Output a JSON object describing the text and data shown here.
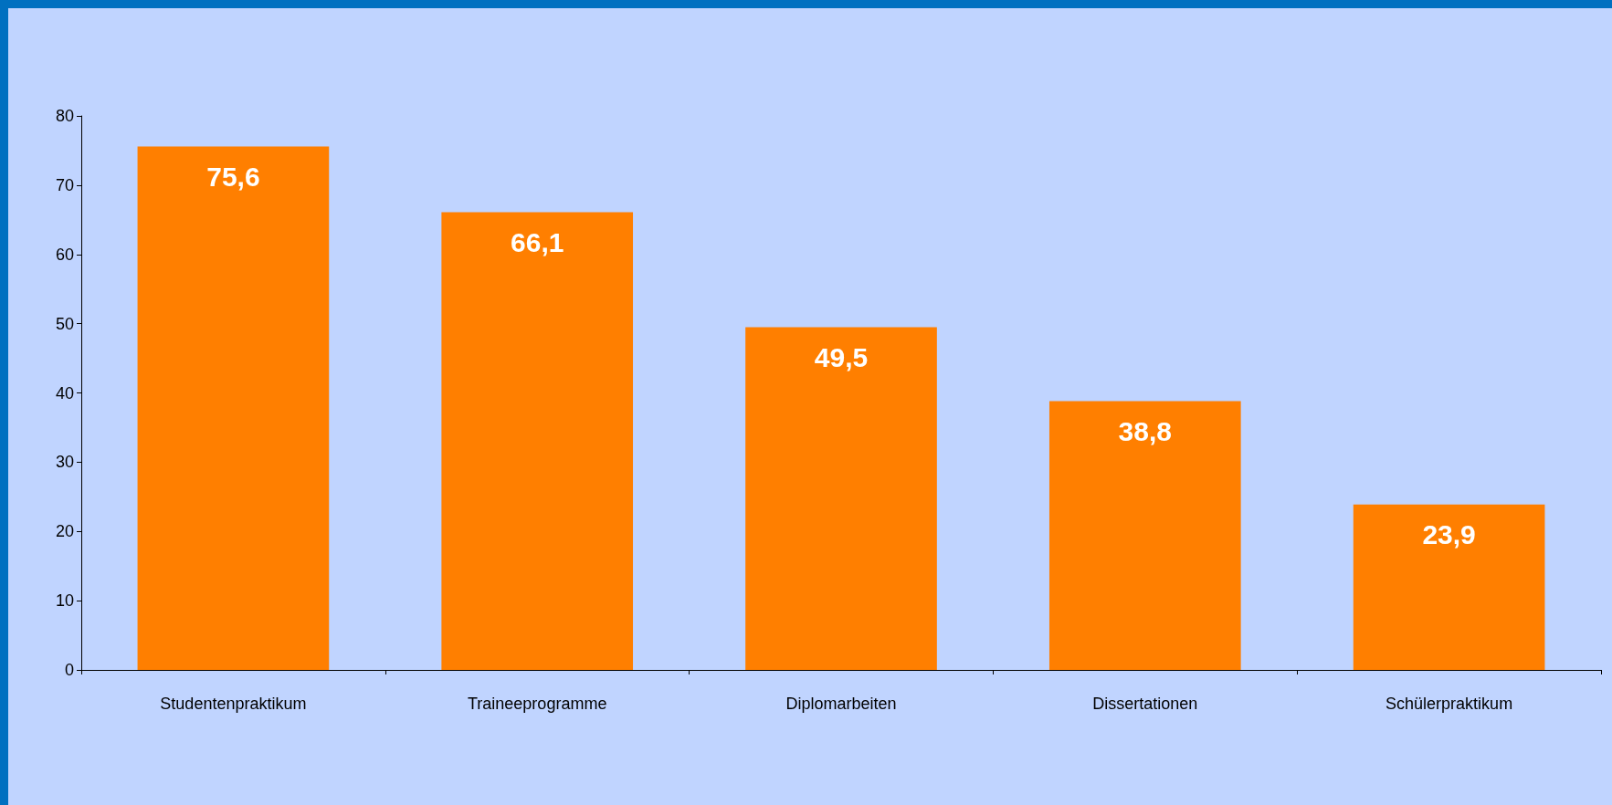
{
  "chart_data": {
    "type": "bar",
    "categories": [
      "Studentenpraktikum",
      "Traineeprogramme",
      "Diplomarbeiten",
      "Dissertationen",
      "Schülerpraktikum"
    ],
    "values": [
      75.6,
      66.1,
      49.5,
      38.8,
      23.9
    ],
    "color": "#ff7f00",
    "ylim": [
      0,
      80
    ],
    "yticks": [
      0,
      10,
      20,
      30,
      40,
      50,
      60,
      70,
      80
    ],
    "grid": false,
    "value_labels": [
      "75,6",
      "66,1",
      "49,5",
      "38,8",
      "23,9"
    ]
  }
}
